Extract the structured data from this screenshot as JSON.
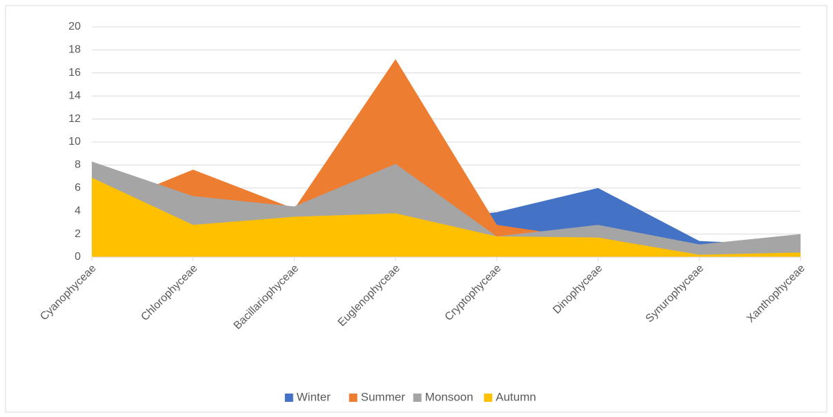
{
  "chart_data": {
    "type": "area",
    "categories": [
      "Cyanophyceae",
      "Chlorophyceae",
      "Bacillariophyceae",
      "Euglenophyceae",
      "Cryptophyceae",
      "Dinophyceae",
      "Synurophyceae",
      "Xanthophyceae"
    ],
    "series": [
      {
        "name": "Winter",
        "color": "#4472c4",
        "values": [
          3,
          3,
          2,
          3,
          3.9,
          6.0,
          1.4,
          1
        ]
      },
      {
        "name": "Summer",
        "color": "#ed7d31",
        "values": [
          4,
          7.6,
          4.2,
          17.2,
          2.8,
          1.5,
          1.1,
          0.5
        ]
      },
      {
        "name": "Monsoon",
        "color": "#a5a5a5",
        "values": [
          8.3,
          5.3,
          4.4,
          8.1,
          1.8,
          2.8,
          1.1,
          2.0
        ]
      },
      {
        "name": "Autumn",
        "color": "#ffc000",
        "values": [
          6.9,
          2.8,
          3.5,
          3.8,
          1.8,
          1.7,
          0.2,
          0.4
        ]
      }
    ],
    "ylim": [
      0,
      20
    ],
    "yticks": [
      0,
      2,
      4,
      6,
      8,
      10,
      12,
      14,
      16,
      18,
      20
    ],
    "grid": true,
    "legend": "bottom"
  }
}
